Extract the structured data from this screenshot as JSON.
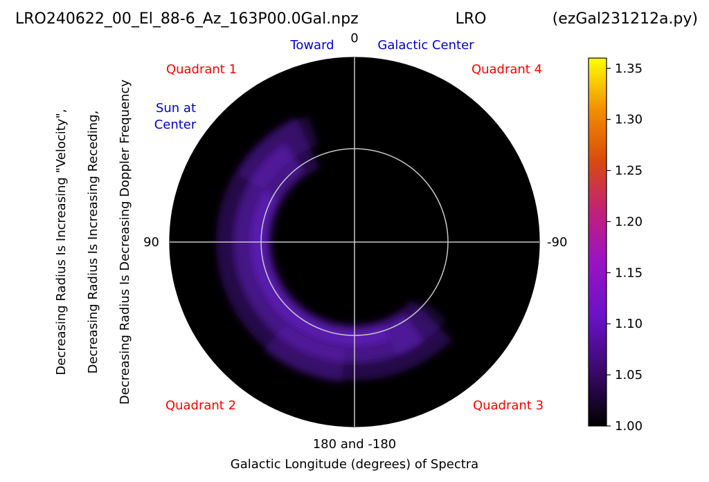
{
  "header": {
    "left": "LRO240622_00_El_88-6_Az_163P00.0Gal.npz",
    "center": "LRO",
    "right": "(ezGal231212a.py)"
  },
  "ylabel_lines": [
    "Decreasing Radius Is Increasing \"Velocity\",",
    "Decreasing Radius Is Increasing Receding,",
    "Decreasing Radius Is Decreasing Doppler Frequency"
  ],
  "xlabel_lines": [
    "180 and -180",
    "Galactic Longitude (degrees) of Spectra"
  ],
  "angle_labels": {
    "top": "0",
    "left": "90",
    "right": "-90"
  },
  "annotations": {
    "toward": "Toward",
    "galactic_center": "Galactic Center",
    "sun_line1": "Sun at",
    "sun_line2": "Center",
    "quadrant1": "Quadrant 1",
    "quadrant2": "Quadrant 2",
    "quadrant3": "Quadrant 3",
    "quadrant4": "Quadrant 4"
  },
  "colors": {
    "quadrant_text": "#ff0000",
    "annotation_text": "#0000cc",
    "disk_background": "#000000",
    "emission": "#6a1fd0",
    "guide_lines": "#c8c8c8"
  },
  "chart_data": {
    "type": "heatmap",
    "projection": "polar",
    "colormap": "gnuplot",
    "colorbar": {
      "ticks": [
        1.0,
        1.05,
        1.1,
        1.15,
        1.2,
        1.25,
        1.3,
        1.35
      ],
      "tick_labels": [
        "1.00",
        "1.05",
        "1.10",
        "1.15",
        "1.20",
        "1.25",
        "1.30",
        "1.35"
      ],
      "range": [
        1.0,
        1.36
      ]
    },
    "emission_arc": {
      "galactic_longitude_start_deg": 25,
      "galactic_longitude_end_deg": 225,
      "intensity_typical": 1.06
    },
    "grid": true
  }
}
